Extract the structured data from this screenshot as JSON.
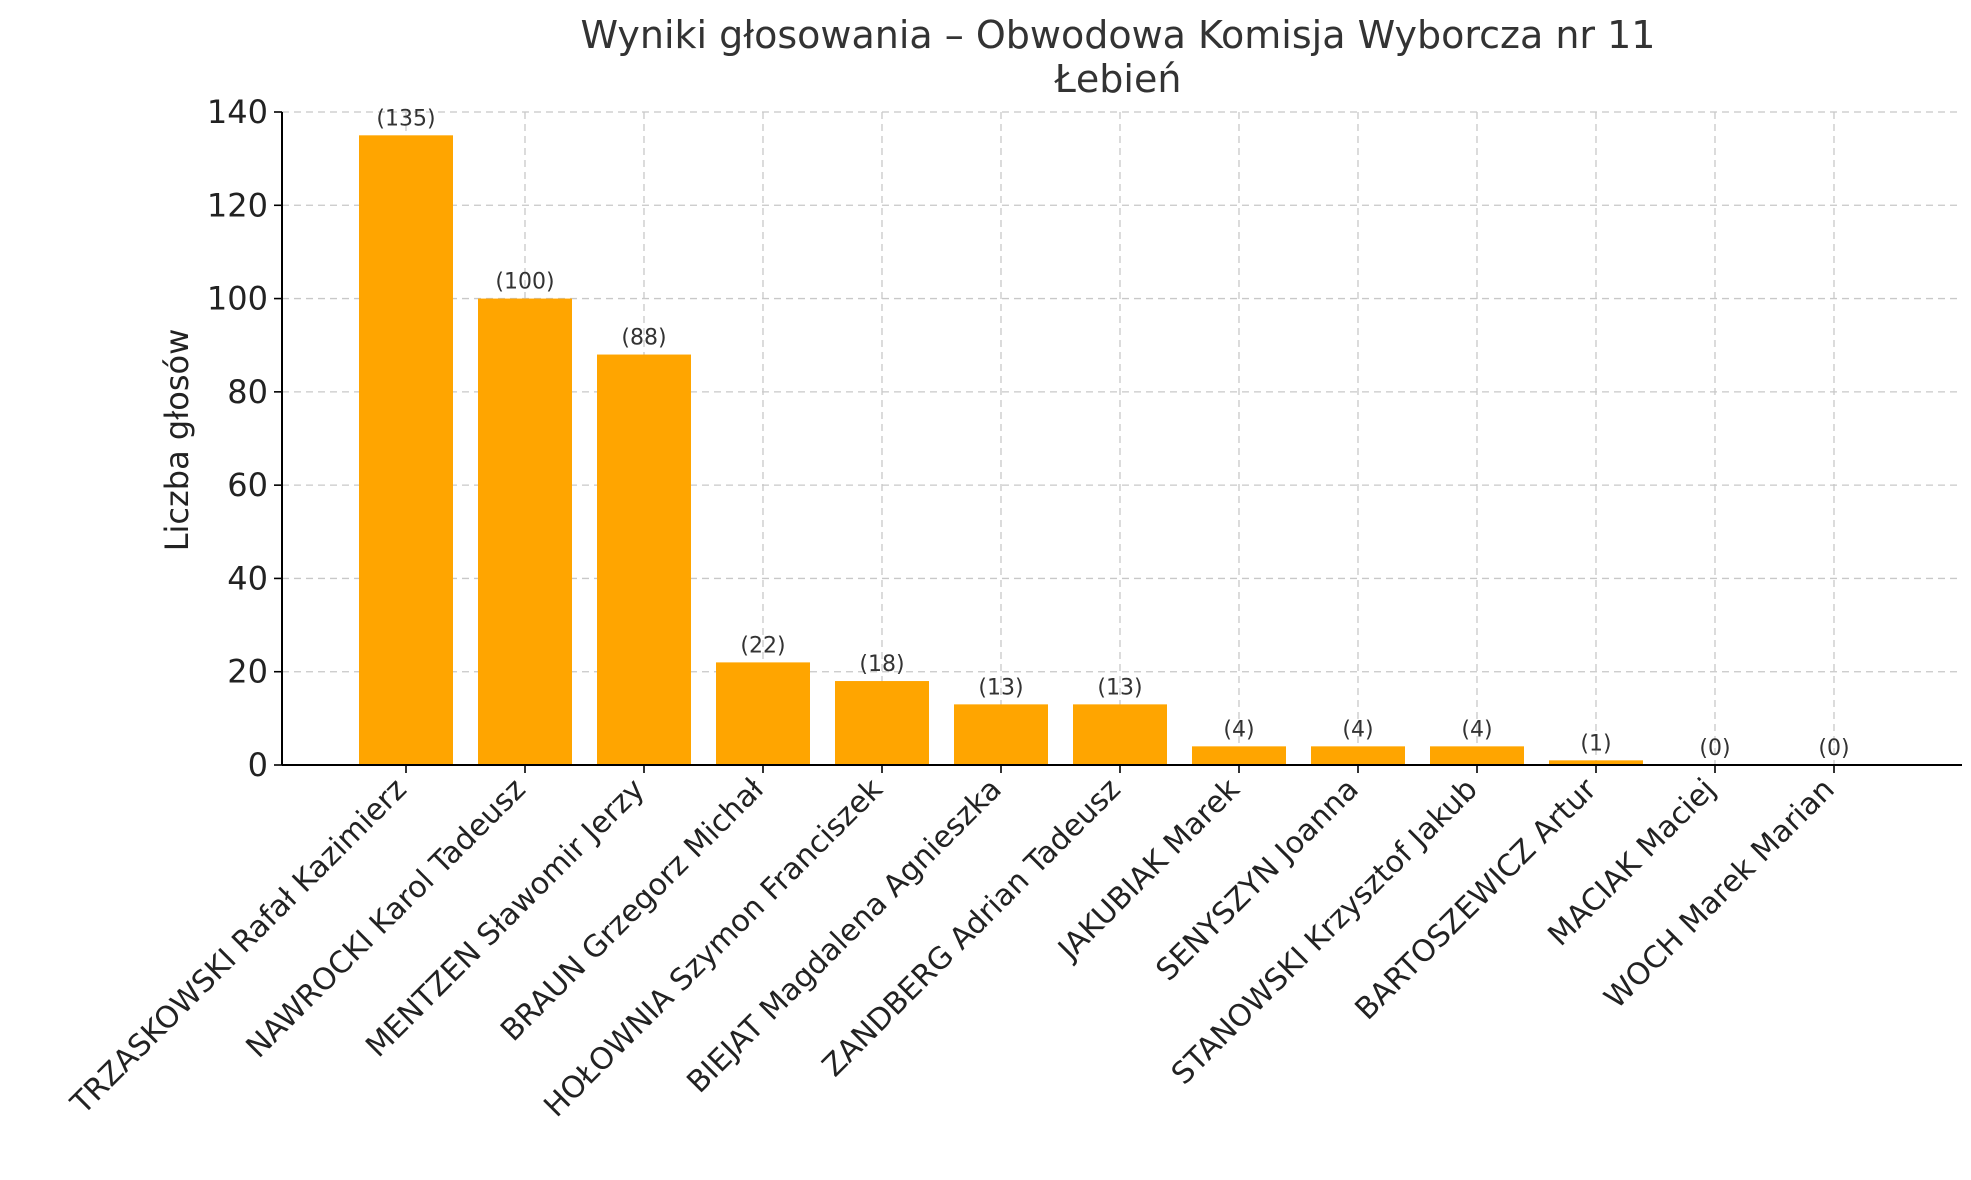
{
  "chart_data": {
    "type": "bar",
    "title": "Wyniki głosowania – Obwodowa Komisja Wyborcza nr 11",
    "subtitle": "Łebień",
    "xlabel": "",
    "ylabel": "Liczba głosów",
    "ylim": [
      0,
      140
    ],
    "yticks": [
      0,
      20,
      40,
      60,
      80,
      100,
      120,
      140
    ],
    "grid": true,
    "bar_color": "#FFA500",
    "categories": [
      "TRZASKOWSKI Rafał Kazimierz",
      "NAWROCKI Karol Tadeusz",
      "MENTZEN Sławomir Jerzy",
      "BRAUN Grzegorz Michał",
      "HOŁOWNIA Szymon Franciszek",
      "BIEJAT Magdalena Agnieszka",
      "ZANDBERG Adrian Tadeusz",
      "JAKUBIAK Marek",
      "SENYSZYN Joanna",
      "STANOWSKI Krzysztof Jakub",
      "BARTOSZEWICZ Artur",
      "MACIAK Maciej",
      "WOCH Marek Marian"
    ],
    "values": [
      135,
      100,
      88,
      22,
      18,
      13,
      13,
      4,
      4,
      4,
      1,
      0,
      0
    ],
    "data_labels": [
      "(135)",
      "(100)",
      "(88)",
      "(22)",
      "(18)",
      "(13)",
      "(13)",
      "(4)",
      "(4)",
      "(4)",
      "(1)",
      "(0)",
      "(0)"
    ]
  }
}
